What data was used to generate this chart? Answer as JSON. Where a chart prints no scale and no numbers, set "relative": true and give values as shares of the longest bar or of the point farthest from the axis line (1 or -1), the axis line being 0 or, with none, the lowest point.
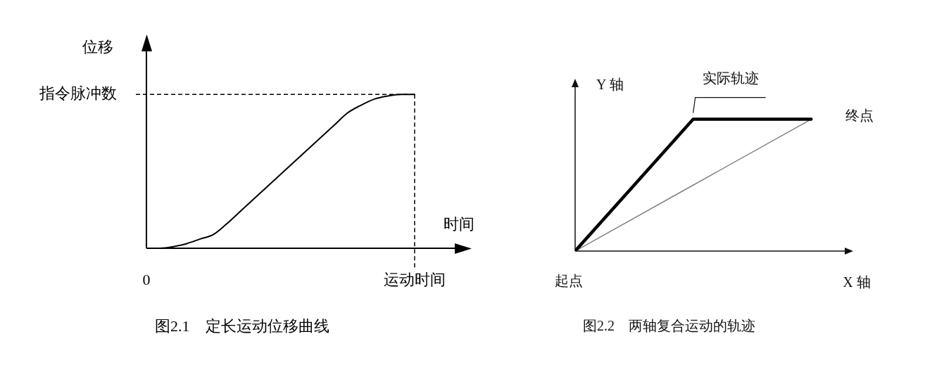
{
  "chart_data": [
    {
      "type": "line",
      "title": "图2.1　定长运动位移曲线",
      "xlabel": "时间",
      "ylabel": "位移",
      "relative": true,
      "categories": [
        "0",
        null,
        null,
        null,
        null,
        null,
        null,
        null,
        null,
        null,
        null,
        null,
        null,
        null,
        null,
        null,
        null,
        null,
        null,
        null,
        "运动时间"
      ],
      "values": [
        0,
        0,
        0.01,
        0.03,
        0.06,
        0.09,
        0.16,
        0.24,
        0.32,
        0.4,
        0.48,
        0.56,
        0.64,
        0.72,
        0.8,
        0.88,
        0.93,
        0.97,
        0.99,
        1,
        1
      ],
      "color": "#000000",
      "ref_lines": [
        {
          "axis": "y",
          "value": 1,
          "label": "指令脉冲数",
          "line_style": "dashed"
        },
        {
          "axis": "x",
          "value": "运动时间",
          "line_style": "dashed"
        }
      ]
    },
    {
      "type": "line",
      "title": "图2.2　两轴复合运动的轨迹",
      "xlabel": "X 轴",
      "ylabel": "Y 轴",
      "relative": true,
      "categories": [
        null,
        null,
        null
      ],
      "series": [
        {
          "name": "实际轨迹",
          "color": "#000000",
          "values": [
            0,
            1,
            1
          ]
        },
        {
          "color": "#808080",
          "values": [
            0,
            0.5,
            1
          ]
        }
      ],
      "annotations": [
        "起点",
        "终点"
      ]
    }
  ]
}
